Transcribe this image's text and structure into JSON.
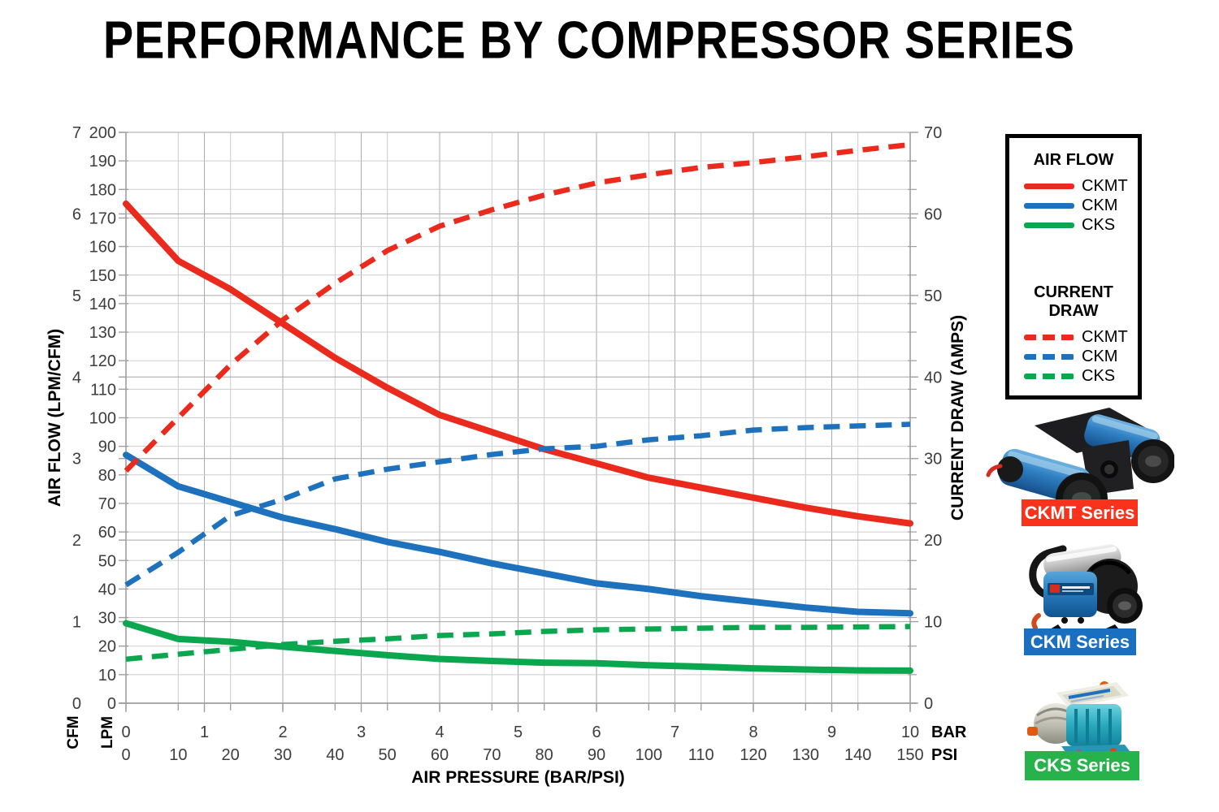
{
  "title": "PERFORMANCE BY COMPRESSOR SERIES",
  "chart_data": {
    "type": "line",
    "title": "PERFORMANCE BY COMPRESSOR SERIES",
    "xlabel": "AIR PRESSURE (BAR/PSI)",
    "ylabel_left": "AIR FLOW (LPM/CFM)",
    "ylabel_right": "CURRENT DRAW (AMPS)",
    "grid": true,
    "legend_position": "right",
    "x_axis": {
      "psi_max": 150,
      "bar_max": 10,
      "bar_unit": "BAR",
      "psi_unit": "PSI",
      "bar_ticks": [
        0,
        1,
        2,
        3,
        4,
        5,
        6,
        7,
        8,
        9,
        10
      ],
      "psi_ticks": [
        0,
        10,
        20,
        30,
        40,
        50,
        60,
        70,
        80,
        90,
        100,
        110,
        120,
        130,
        140,
        150
      ]
    },
    "y_left": {
      "lpm_max": 200,
      "cfm_max": 7,
      "cfm_unit": "CFM",
      "lpm_unit": "LPM",
      "lpm_ticks": [
        0,
        10,
        20,
        30,
        40,
        50,
        60,
        70,
        80,
        90,
        100,
        110,
        120,
        130,
        140,
        150,
        160,
        170,
        180,
        190,
        200
      ],
      "cfm_ticks": [
        0,
        1,
        2,
        3,
        4,
        5,
        6,
        7
      ]
    },
    "y_right": {
      "amp_max": 70,
      "amp_ticks": [
        0,
        10,
        20,
        30,
        40,
        50,
        60,
        70
      ]
    },
    "x_psi": [
      0,
      10,
      20,
      30,
      40,
      50,
      60,
      70,
      80,
      90,
      100,
      110,
      120,
      130,
      140,
      150
    ],
    "series": [
      {
        "name": "CKMT",
        "group": "AIR FLOW",
        "style": "solid",
        "unit": "LPM",
        "color": "#e92a1c",
        "values": [
          175,
          155,
          145,
          133,
          121,
          110.5,
          101,
          95,
          89,
          84,
          79,
          75.5,
          72,
          68.5,
          65.5,
          63
        ]
      },
      {
        "name": "CKM",
        "group": "AIR FLOW",
        "style": "solid",
        "unit": "LPM",
        "color": "#1e71bd",
        "values": [
          87,
          76,
          70.5,
          65,
          61,
          56.5,
          53,
          49,
          45.5,
          42,
          40,
          37.5,
          35.5,
          33.5,
          32,
          31.5
        ]
      },
      {
        "name": "CKS",
        "group": "AIR FLOW",
        "style": "solid",
        "unit": "LPM",
        "color": "#0aa74f",
        "values": [
          28,
          22.5,
          21.5,
          19.8,
          18.3,
          16.8,
          15.5,
          14.8,
          14.2,
          14,
          13.3,
          12.8,
          12.2,
          11.8,
          11.5,
          11.4
        ]
      },
      {
        "name": "CKMT",
        "group": "CURRENT DRAW",
        "style": "dashed",
        "unit": "AMPS",
        "color": "#e92a1c",
        "values": [
          28.5,
          35,
          41.5,
          47,
          51.5,
          55.5,
          58.5,
          60.5,
          62.3,
          63.8,
          64.8,
          65.7,
          66.3,
          67,
          67.8,
          68.5
        ]
      },
      {
        "name": "CKM",
        "group": "CURRENT DRAW",
        "style": "dashed",
        "unit": "AMPS",
        "color": "#1e71bd",
        "values": [
          14.5,
          18.5,
          23,
          25,
          27.5,
          28.7,
          29.6,
          30.5,
          31.2,
          31.5,
          32.3,
          32.8,
          33.5,
          33.8,
          34,
          34.2
        ]
      },
      {
        "name": "CKS",
        "group": "CURRENT DRAW",
        "style": "dashed",
        "unit": "AMPS",
        "color": "#0aa74f",
        "values": [
          5.4,
          6,
          6.6,
          7.2,
          7.6,
          7.9,
          8.3,
          8.5,
          8.8,
          9,
          9.1,
          9.2,
          9.3,
          9.3,
          9.35,
          9.4
        ]
      }
    ]
  },
  "legend": {
    "air_flow_heading": "AIR FLOW",
    "current_draw_heading": "CURRENT DRAW",
    "air_flow_items": [
      {
        "label": "CKMT",
        "color": "#e92a1c"
      },
      {
        "label": "CKM",
        "color": "#1e71bd"
      },
      {
        "label": "CKS",
        "color": "#0aa74f"
      }
    ],
    "current_draw_items": [
      {
        "label": "CKMT",
        "color": "#e92a1c"
      },
      {
        "label": "CKM",
        "color": "#1e71bd"
      },
      {
        "label": "CKS",
        "color": "#0aa74f"
      }
    ]
  },
  "products": [
    {
      "name": "CKMT",
      "label": "CKMT Series",
      "color": "#f9321c"
    },
    {
      "name": "CKM",
      "label": "CKM Series",
      "color": "#1b6fc1"
    },
    {
      "name": "CKS",
      "label": "CKS Series",
      "color": "#27b24b"
    }
  ]
}
